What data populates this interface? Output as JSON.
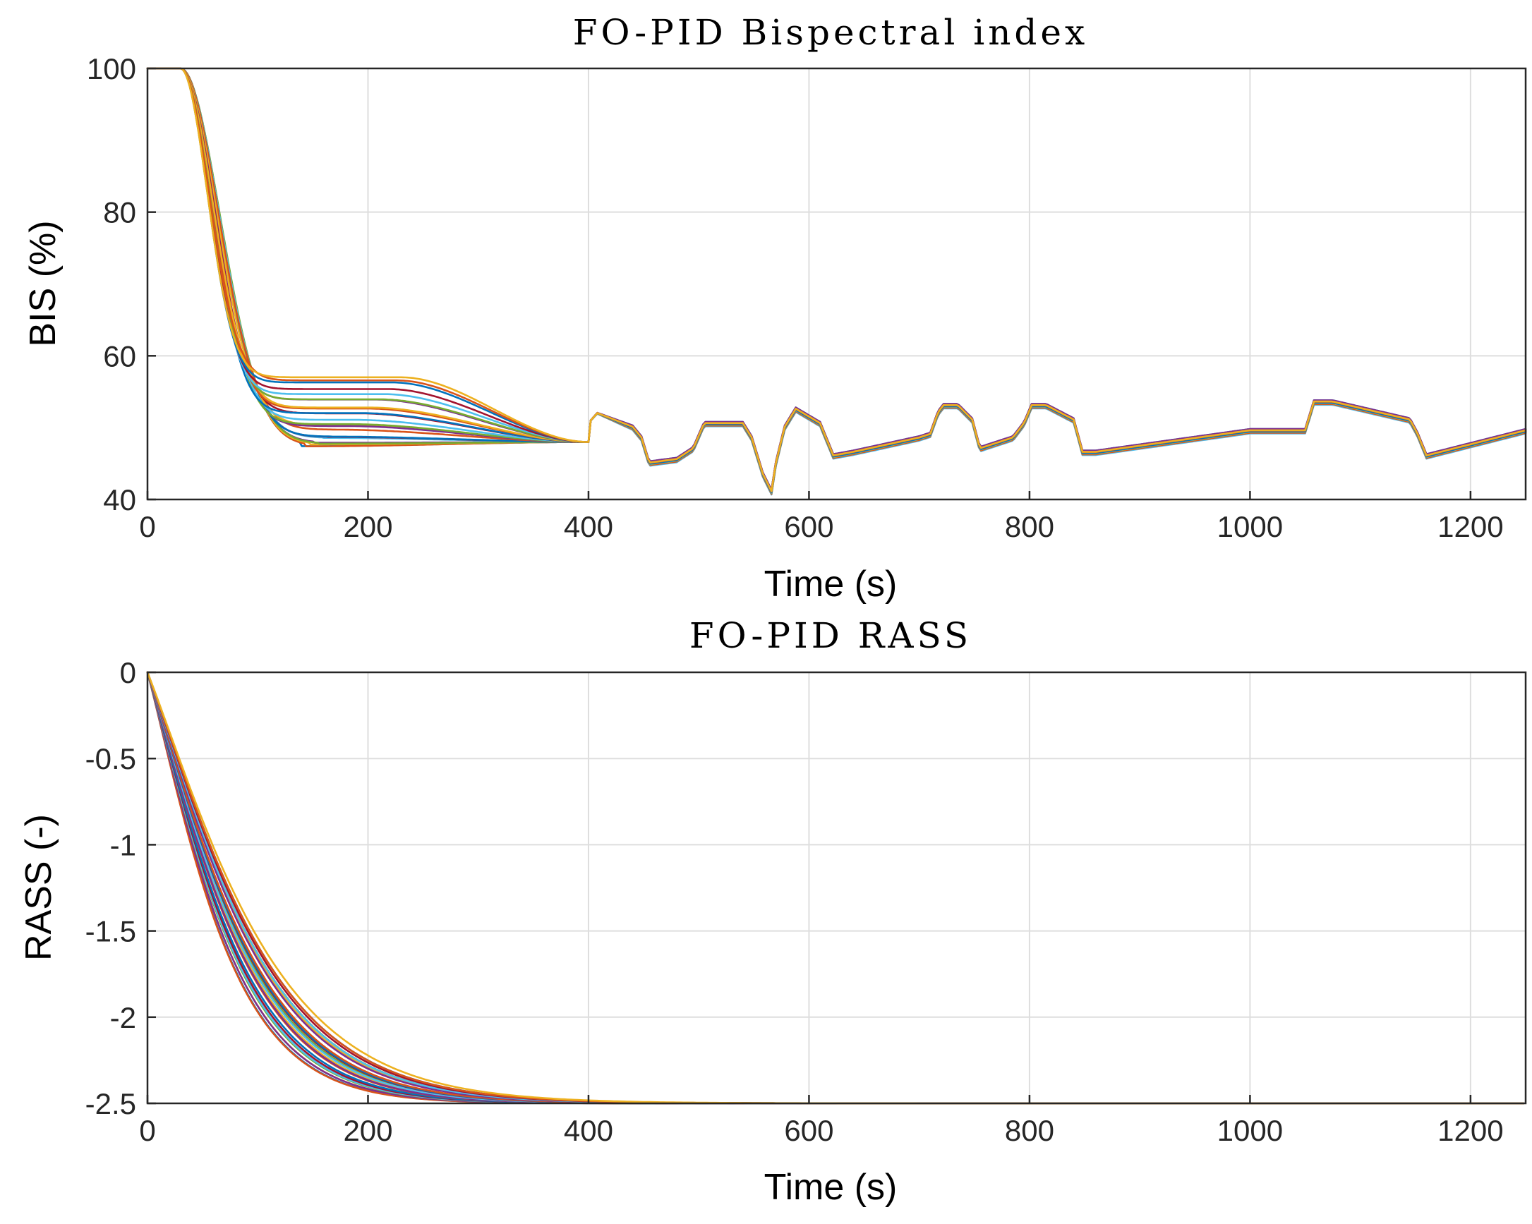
{
  "colors": [
    "#0072BD",
    "#D95319",
    "#EDB120",
    "#7E2F8E",
    "#77AC30",
    "#4DBEEE",
    "#A2142F"
  ],
  "chart_data": [
    {
      "type": "line",
      "title": "FO-PID Bispectral index",
      "xlabel": "Time (s)",
      "ylabel": "BIS (%)",
      "xlim": [
        0,
        1250
      ],
      "ylim": [
        40,
        100
      ],
      "xticks": [
        0,
        200,
        400,
        600,
        800,
        1000,
        1200
      ],
      "yticks": [
        40,
        60,
        80,
        100
      ],
      "grid": true,
      "n_series": 24,
      "induction": {
        "delay_s": 30,
        "start_value": 100,
        "convergence_time_s": 400,
        "convergence_value": 48,
        "trough_range": [
          47,
          57
        ],
        "trough_time_range": [
          140,
          230
        ]
      },
      "common_trajectory": {
        "x": [
          400,
          402,
          408,
          440,
          448,
          455,
          480,
          495,
          505,
          540,
          548,
          558,
          566,
          570,
          578,
          588,
          610,
          622,
          640,
          700,
          710,
          717,
          722,
          735,
          748,
          755,
          785,
          795,
          802,
          815,
          840,
          848,
          860,
          1000,
          1050,
          1058,
          1075,
          1145,
          1152,
          1160,
          1250
        ],
        "y": [
          48,
          51,
          52,
          50,
          48.5,
          45,
          45.5,
          47,
          50.5,
          50.5,
          48.5,
          43.5,
          41,
          45,
          50,
          52.5,
          50.5,
          46,
          46.5,
          48.5,
          49,
          52,
          53,
          53,
          51,
          47,
          48.5,
          50.5,
          53,
          53,
          51,
          46.5,
          46.5,
          49.5,
          49.5,
          53.5,
          53.5,
          51,
          49,
          46,
          49.5
        ]
      }
    },
    {
      "type": "line",
      "title": "FO-PID RASS",
      "xlabel": "Time (s)",
      "ylabel": "RASS (-)",
      "xlim": [
        0,
        1250
      ],
      "ylim": [
        -2.5,
        0
      ],
      "xticks": [
        0,
        200,
        400,
        600,
        800,
        1000,
        1200
      ],
      "xtick_labels": [
        "0",
        "200",
        "400",
        "600",
        "800",
        "1000",
        "1200"
      ],
      "yticks": [
        -2.5,
        -2,
        -1.5,
        -1,
        -0.5,
        0
      ],
      "ytick_labels": [
        "-2.5",
        "-2",
        "-1.5",
        "-1",
        "-0.5",
        "0"
      ],
      "grid": true,
      "n_series": 24,
      "start_value": 0,
      "final_value": -2.5,
      "time_constant_range_s": [
        40,
        60
      ]
    }
  ]
}
